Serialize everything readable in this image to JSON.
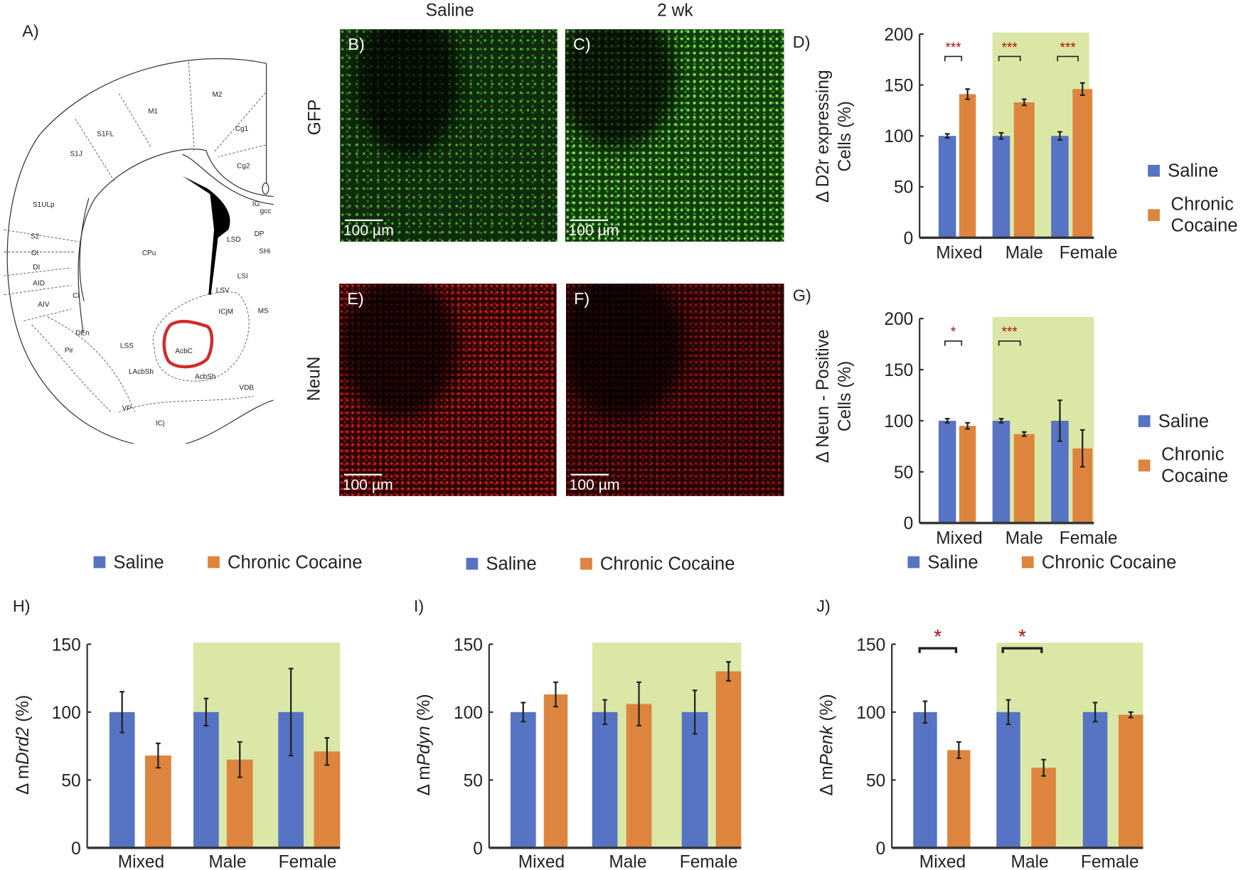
{
  "panel_labels": {
    "A": "A)",
    "B": "B)",
    "C": "C)",
    "D": "D)",
    "E": "E)",
    "F": "F)",
    "G": "G)",
    "H": "H)",
    "I": "I)",
    "J": "J)"
  },
  "column_headers": [
    "Saline",
    "2 wk"
  ],
  "row_headers": [
    "GFP",
    "NeuN"
  ],
  "scale_bar": "100 µm",
  "atlas": {
    "labels": [
      "M2",
      "M1",
      "S1FL",
      "S1J",
      "Cg1",
      "Cg2",
      "S1ULp",
      "IG",
      "gcc",
      "S2",
      "GI",
      "DI",
      "AID",
      "AIV",
      "Cl",
      "CPu",
      "LSD",
      "DP",
      "SHi",
      "LSI",
      "LSV",
      "ICjM",
      "MS",
      "DEn",
      "LSS",
      "Pir",
      "AcbC",
      "LAcbSh",
      "AcbSh",
      "VDB",
      "VP",
      "ICj"
    ],
    "highlight_region": "AcbC",
    "highlight_color": "#d42a2a"
  },
  "legend": {
    "saline": "Saline",
    "cocaine": "Chronic Cocaine",
    "cocaine_line1": "Chronic",
    "cocaine_line2": "Cocaine"
  },
  "colors": {
    "saline": "#5673c4",
    "cocaine": "#dd853e",
    "shade": "#dbe7a6",
    "sig": "#b01010"
  },
  "chart_data": [
    {
      "id": "D",
      "type": "bar",
      "ylabel_lines": [
        "Δ D2r expressing",
        "Cells (%)"
      ],
      "ylim": [
        0,
        200
      ],
      "yticks": [
        0,
        50,
        100,
        150,
        200
      ],
      "categories": [
        "Mixed",
        "Male",
        "Female"
      ],
      "shaded_categories": [
        "Male",
        "Female"
      ],
      "series": [
        {
          "name": "Saline",
          "values": [
            100,
            100,
            100
          ],
          "errors": [
            2,
            3,
            4
          ]
        },
        {
          "name": "Chronic Cocaine",
          "values": [
            141,
            133,
            146
          ],
          "errors": [
            5,
            3,
            6
          ]
        }
      ],
      "significance": [
        "***",
        "***",
        "***"
      ],
      "legend_position": "right"
    },
    {
      "id": "G",
      "type": "bar",
      "ylabel_lines": [
        "Δ Neun - Positive",
        "Cells (%)"
      ],
      "ylim": [
        0,
        200
      ],
      "yticks": [
        0,
        50,
        100,
        150,
        200
      ],
      "categories": [
        "Mixed",
        "Male",
        "Female"
      ],
      "shaded_categories": [
        "Male",
        "Female"
      ],
      "series": [
        {
          "name": "Saline",
          "values": [
            100,
            100,
            100
          ],
          "errors": [
            2,
            2,
            20
          ]
        },
        {
          "name": "Chronic Cocaine",
          "values": [
            95,
            87,
            73
          ],
          "errors": [
            3,
            2,
            18
          ]
        }
      ],
      "significance": [
        "*",
        "***",
        ""
      ],
      "legend_position": "right"
    },
    {
      "id": "H",
      "type": "bar",
      "ylabel_prefix": "Δ m",
      "ylabel_gene": "Drd2",
      "ylabel_suffix": " (%)",
      "ylim": [
        0,
        150
      ],
      "yticks": [
        0,
        50,
        100,
        150
      ],
      "categories": [
        "Mixed",
        "Male",
        "Female"
      ],
      "shaded_categories": [
        "Male",
        "Female"
      ],
      "series": [
        {
          "name": "Saline",
          "values": [
            100,
            100,
            100
          ],
          "errors": [
            15,
            10,
            32
          ]
        },
        {
          "name": "Chronic Cocaine",
          "values": [
            68,
            65,
            71
          ],
          "errors": [
            9,
            13,
            10
          ]
        }
      ],
      "significance": [
        "",
        "",
        ""
      ],
      "legend_position": "top"
    },
    {
      "id": "I",
      "type": "bar",
      "ylabel_prefix": "Δ m",
      "ylabel_gene": "Pdyn",
      "ylabel_suffix": " (%)",
      "ylim": [
        0,
        150
      ],
      "yticks": [
        0,
        50,
        100,
        150
      ],
      "categories": [
        "Mixed",
        "Male",
        "Female"
      ],
      "shaded_categories": [
        "Male",
        "Female"
      ],
      "series": [
        {
          "name": "Saline",
          "values": [
            100,
            100,
            100
          ],
          "errors": [
            7,
            9,
            16
          ]
        },
        {
          "name": "Chronic Cocaine",
          "values": [
            113,
            106,
            130
          ],
          "errors": [
            9,
            16,
            7
          ]
        }
      ],
      "significance": [
        "",
        "",
        ""
      ],
      "legend_position": "top"
    },
    {
      "id": "J",
      "type": "bar",
      "ylabel_prefix": "Δ m",
      "ylabel_gene": "Penk",
      "ylabel_suffix": " (%)",
      "ylim": [
        0,
        150
      ],
      "yticks": [
        0,
        50,
        100,
        150
      ],
      "categories": [
        "Mixed",
        "Male",
        "Female"
      ],
      "shaded_categories": [
        "Male",
        "Female"
      ],
      "series": [
        {
          "name": "Saline",
          "values": [
            100,
            100,
            100
          ],
          "errors": [
            8,
            9,
            7
          ]
        },
        {
          "name": "Chronic Cocaine",
          "values": [
            72,
            59,
            98
          ],
          "errors": [
            6,
            6,
            2
          ]
        }
      ],
      "significance": [
        "*",
        "*",
        ""
      ],
      "legend_position": "top"
    }
  ]
}
